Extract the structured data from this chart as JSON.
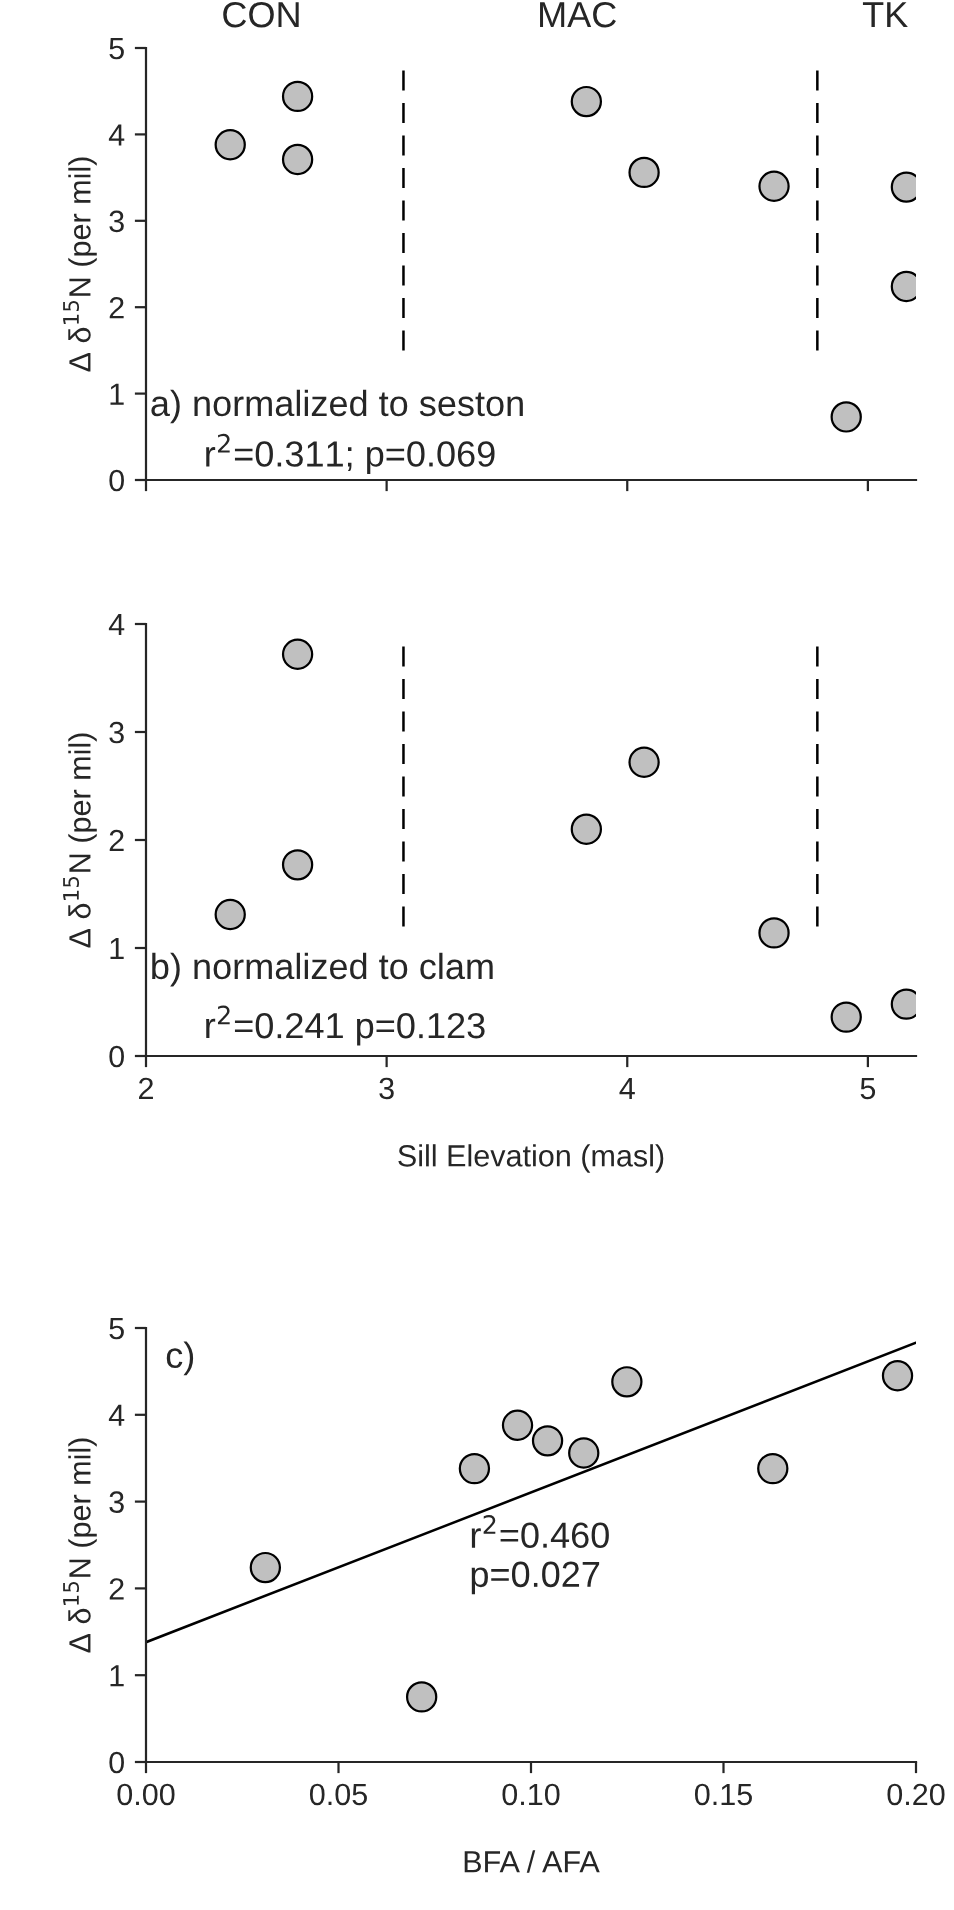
{
  "chart_data": [
    {
      "type": "scatter",
      "ylabel": "Δ δ$^{15}$N (per mil)",
      "xlim": [
        2,
        5.2
      ],
      "ylim": [
        0,
        5
      ],
      "xticks": [
        {
          "value": 2,
          "label": null
        },
        {
          "value": 3,
          "label": null
        },
        {
          "value": 4,
          "label": null
        },
        {
          "value": 5,
          "label": null
        }
      ],
      "yticks": [
        0,
        1,
        2,
        3,
        4,
        5
      ],
      "tick_labels": "y",
      "grid": false,
      "legend": false,
      "marker": "circle",
      "series": [
        {
          "color": "#c0c0c0",
          "x": [
            2.35,
            2.63,
            2.63,
            3.83,
            4.07,
            4.61,
            4.91,
            5.16,
            5.16
          ],
          "values": [
            3.88,
            4.44,
            3.71,
            4.38,
            3.56,
            3.4,
            0.73,
            3.39,
            2.24
          ]
        }
      ],
      "ref_lines": [
        {
          "axis": "x",
          "value": 3.07,
          "line_style": "dashed",
          "color": "#000000"
        },
        {
          "axis": "x",
          "value": 4.79,
          "line_style": "dashed",
          "color": "#000000"
        }
      ],
      "annotations": [
        "CON",
        "MAC",
        "TK",
        "a) normalized to seston",
        "r$^{2}$=0.311; p=0.069"
      ]
    },
    {
      "type": "scatter",
      "xlabel": "Sill Elevation (masl)",
      "ylabel": "Δ δ$^{15}$N (per mil)",
      "xlim": [
        2,
        5.2
      ],
      "ylim": [
        0,
        4
      ],
      "xticks": [
        2,
        3,
        4,
        5
      ],
      "yticks": [
        0,
        1,
        2,
        3,
        4
      ],
      "grid": false,
      "legend": false,
      "marker": "circle",
      "series": [
        {
          "color": "#c0c0c0",
          "x": [
            2.35,
            2.63,
            2.63,
            3.83,
            4.07,
            4.61,
            4.91,
            5.16
          ],
          "values": [
            1.31,
            3.72,
            1.77,
            2.1,
            2.72,
            1.14,
            0.36,
            0.48
          ]
        }
      ],
      "ref_lines": [
        {
          "axis": "x",
          "value": 3.07,
          "line_style": "dashed",
          "color": "#000000"
        },
        {
          "axis": "x",
          "value": 4.79,
          "line_style": "dashed",
          "color": "#000000"
        }
      ],
      "annotations": [
        "b) normalized to clam",
        "r$^{2}$=0.241 p=0.123"
      ]
    },
    {
      "type": "scatter",
      "xlabel": "BFA / AFA",
      "ylabel": "Δ δ$^{15}$N (per mil)",
      "xlim": [
        0,
        0.2
      ],
      "ylim": [
        0,
        5
      ],
      "xticks": [
        {
          "value": 0,
          "label": "0.00"
        },
        {
          "value": 0.05,
          "label": "0.05"
        },
        {
          "value": 0.1,
          "label": "0.10"
        },
        {
          "value": 0.15,
          "label": "0.15"
        },
        {
          "value": 0.2,
          "label": "0.20"
        }
      ],
      "yticks": [
        0,
        1,
        2,
        3,
        4,
        5
      ],
      "grid": false,
      "legend": false,
      "marker": "circle",
      "series": [
        {
          "color": "#c0c0c0",
          "x": [
            0.031,
            0.0716,
            0.0853,
            0.0965,
            0.1043,
            0.1137,
            0.1249,
            0.1628,
            0.1952
          ],
          "values": [
            2.24,
            0.75,
            3.38,
            3.88,
            3.7,
            3.56,
            4.38,
            3.38,
            4.45
          ]
        },
        {
          "type": "line",
          "marker": "none",
          "color": "#000000",
          "x": [
            0,
            0.2
          ],
          "values": [
            1.38,
            4.83
          ]
        }
      ],
      "annotations": [
        "c)",
        "r$^{2}$=0.460\np=0.027"
      ]
    }
  ]
}
